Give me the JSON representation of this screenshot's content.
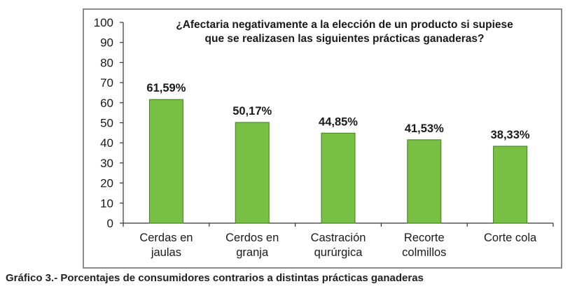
{
  "caption": "Gráfico 3.- Porcentajes de consumidores contrarios a distintas prácticas ganaderas",
  "colors": {
    "bar_fill": "#77c043",
    "bar_stroke": "#3f7f1c",
    "text": "#1a1a1a",
    "frame": "#8c8c8c"
  },
  "chart_data": {
    "type": "bar",
    "title_lines": [
      "¿Afectaria negativamente a la elección de un producto si supiese",
      "que se realizasen las siguientes prácticas ganaderas?"
    ],
    "categories": [
      [
        "Cerdas en",
        "jaulas"
      ],
      [
        "Cerdos en",
        "granja"
      ],
      [
        "Castración",
        "qurúrgica"
      ],
      [
        "Recorte",
        "colmillos"
      ],
      [
        "Corte cola"
      ]
    ],
    "values": [
      61.59,
      50.17,
      44.85,
      41.53,
      38.33
    ],
    "data_labels": [
      "61,59%",
      "50,17%",
      "44,85%",
      "41,53%",
      "38,33%"
    ],
    "ylim": [
      0,
      100
    ],
    "yticks": [
      "0",
      "10",
      "20",
      "30",
      "40",
      "50",
      "60",
      "70",
      "80",
      "90",
      "100"
    ],
    "grid": false,
    "legend": "none"
  }
}
